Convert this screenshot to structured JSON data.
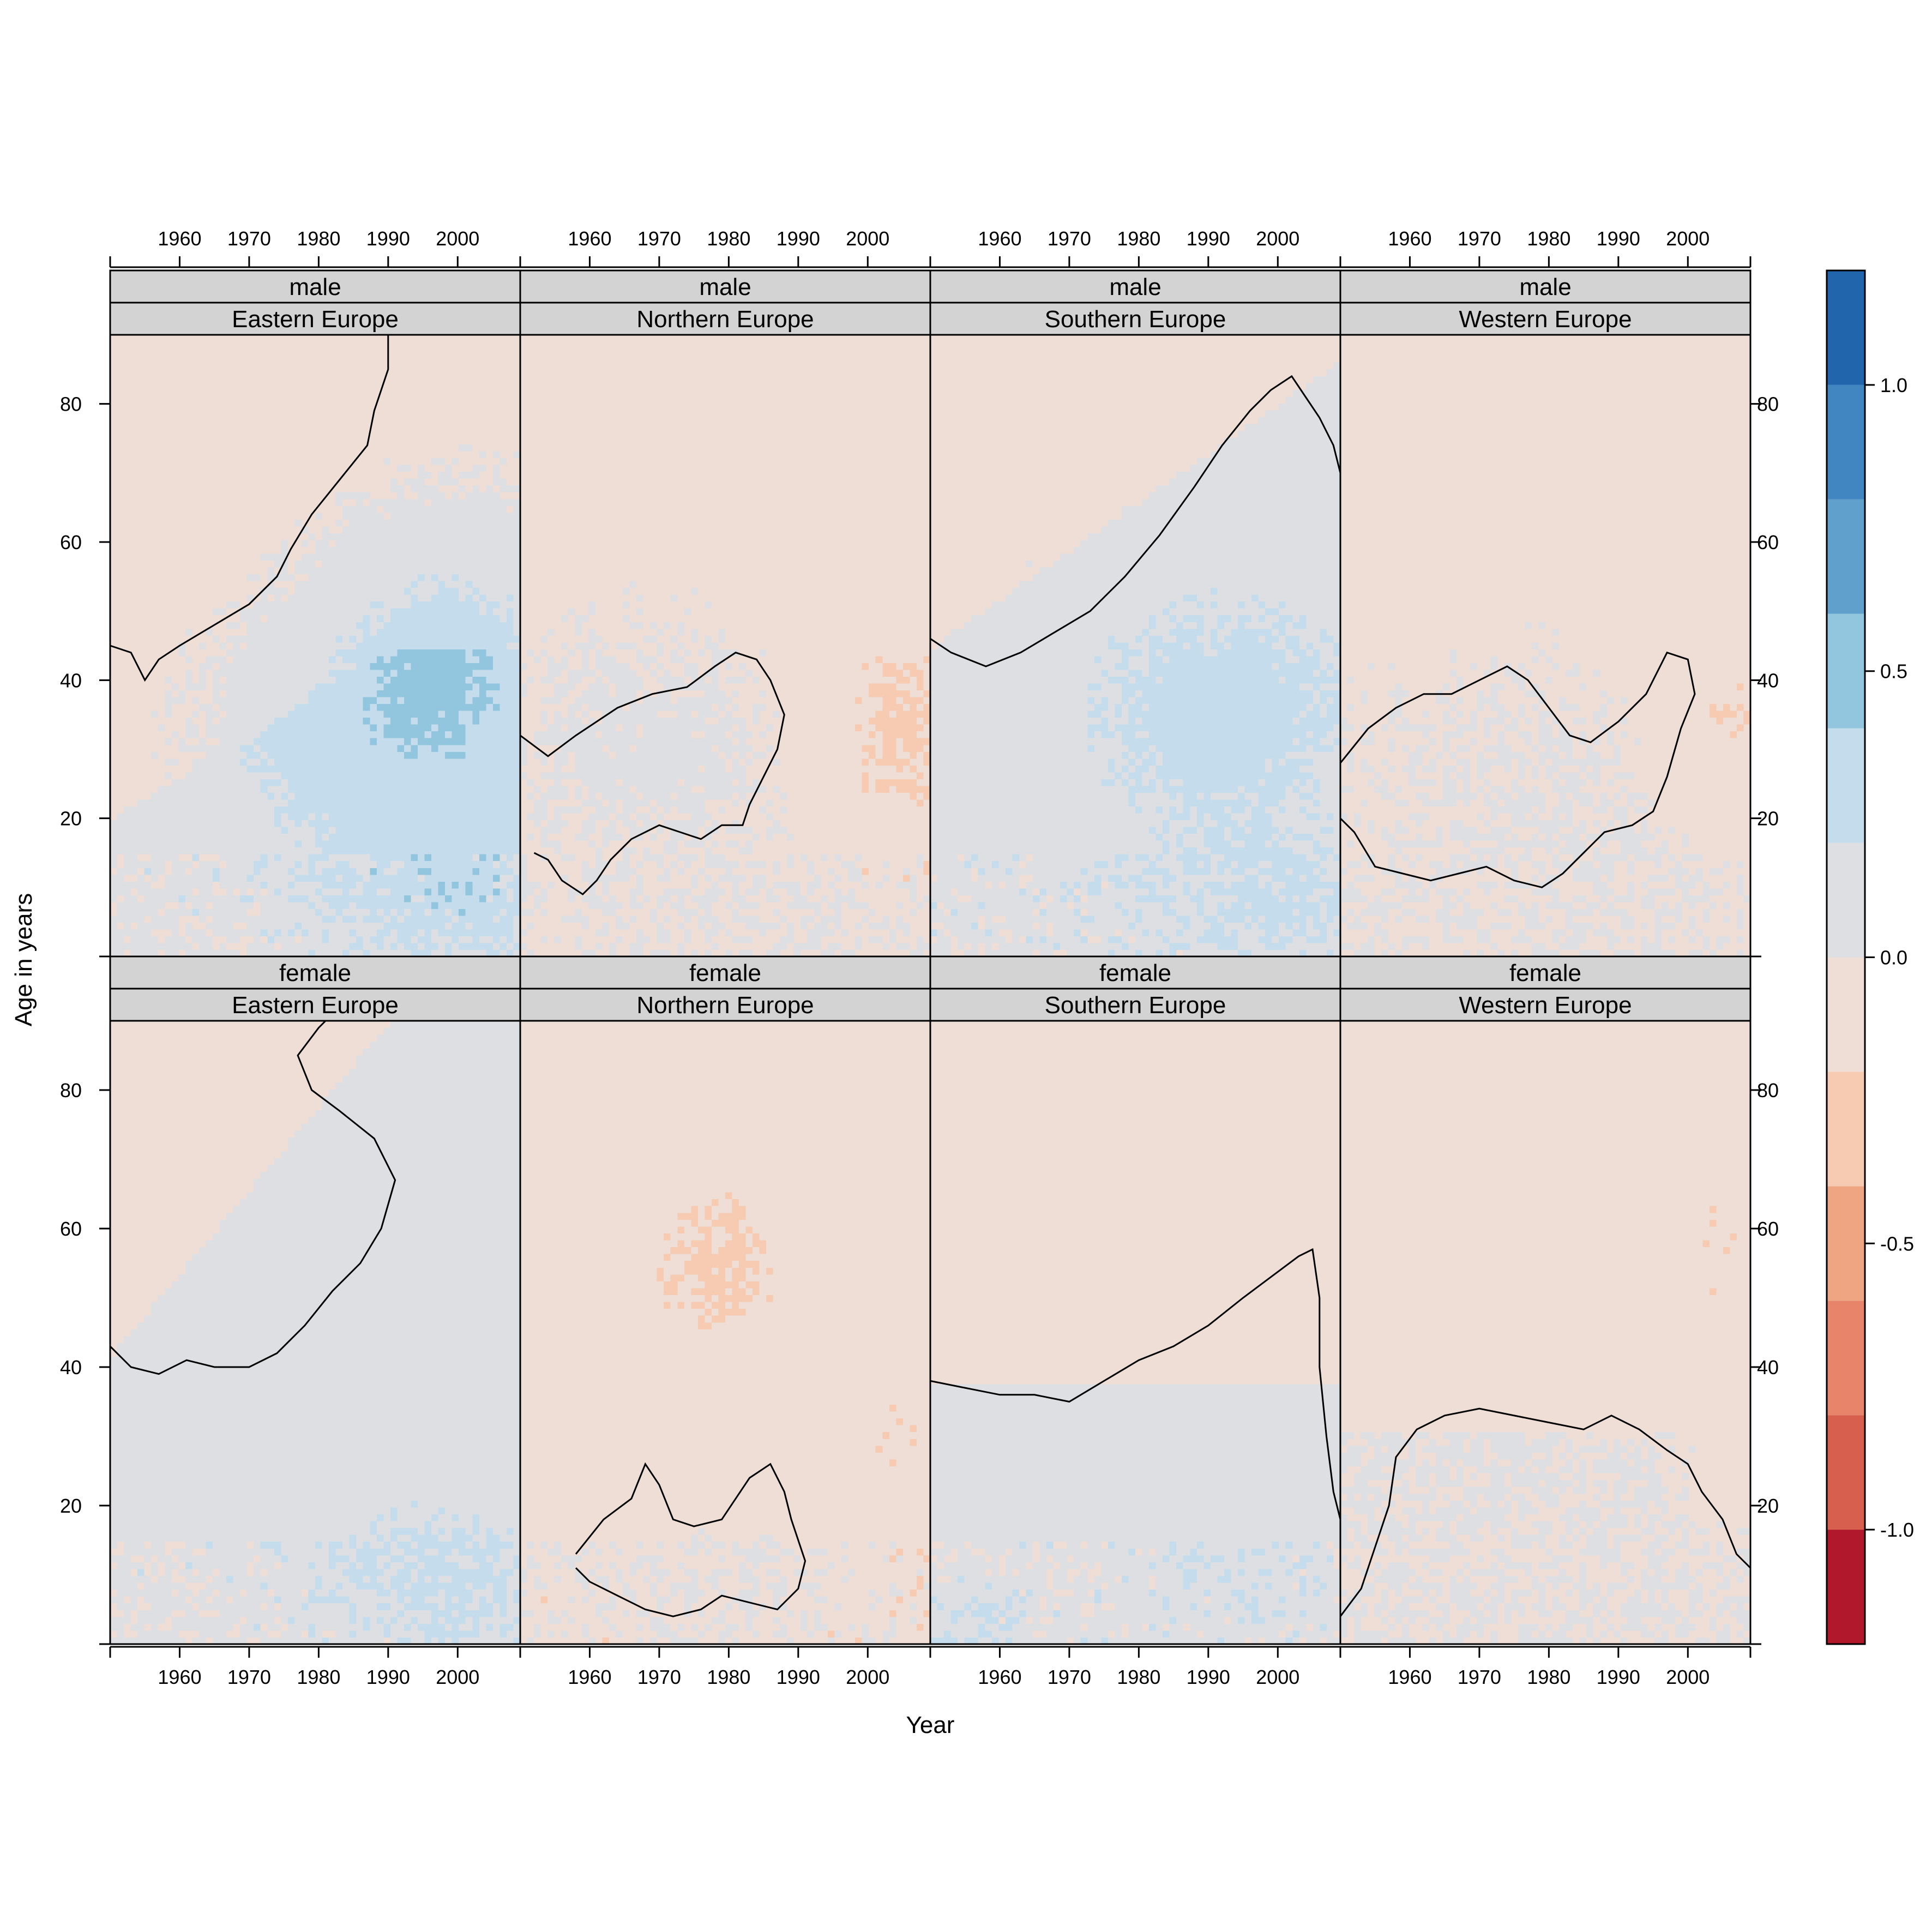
{
  "chart_data": {
    "type": "heatmap",
    "xlabel": "Year",
    "ylabel": "Age in years",
    "x_range": [
      1950,
      2009
    ],
    "y_range": [
      0,
      90
    ],
    "x_ticks": [
      1960,
      1970,
      1980,
      1990,
      2000
    ],
    "x_tick_labels": [
      "1960",
      "1970",
      "1980",
      "1990",
      "2000"
    ],
    "y_ticks": [
      20,
      40,
      60,
      80
    ],
    "y_tick_labels": [
      "20",
      "40",
      "60",
      "80"
    ],
    "colorkey": {
      "breaks": [
        -1.2,
        -1.0,
        -0.8,
        -0.6,
        -0.4,
        -0.2,
        0.0,
        0.2,
        0.4,
        0.6,
        0.8,
        1.0,
        1.2
      ],
      "colors": [
        "#B2182B",
        "#D6604D",
        "#E8846A",
        "#F0A582",
        "#F6CBB1",
        "#EEDED6",
        "#DDDFE3",
        "#C4DCEB",
        "#92C5DE",
        "#5FA1CC",
        "#4186C0",
        "#2166AC"
      ],
      "tick_values": [
        -1.0,
        -0.5,
        0.0,
        0.5,
        1.0
      ],
      "tick_labels": [
        "-1.0",
        "-0.5",
        "0.0",
        "0.5",
        "1.0"
      ],
      "placement": "right"
    },
    "contour_level": 0.0,
    "panels": [
      {
        "sex": "male",
        "region": "Eastern Europe",
        "row": 0,
        "col": 0,
        "contour": [
          [
            1950,
            45
          ],
          [
            1953,
            44
          ],
          [
            1955,
            40
          ],
          [
            1957,
            43
          ],
          [
            1960,
            45
          ],
          [
            1965,
            48
          ],
          [
            1970,
            51
          ],
          [
            1974,
            55
          ],
          [
            1976,
            59
          ],
          [
            1979,
            64
          ],
          [
            1983,
            69
          ],
          [
            1987,
            74
          ],
          [
            1988,
            79
          ],
          [
            1990,
            85
          ],
          [
            1990,
            90
          ]
        ]
      },
      {
        "sex": "male",
        "region": "Northern Europe",
        "row": 0,
        "col": 1,
        "contour": [
          [
            1950,
            32
          ],
          [
            1954,
            29
          ],
          [
            1958,
            32
          ],
          [
            1964,
            36
          ],
          [
            1969,
            38
          ],
          [
            1974,
            39
          ],
          [
            1978,
            42
          ],
          [
            1981,
            44
          ],
          [
            1984,
            43
          ],
          [
            1986,
            40
          ],
          [
            1988,
            35
          ],
          [
            1987,
            30
          ],
          [
            1985,
            26
          ],
          [
            1983,
            22
          ],
          [
            1982,
            19
          ],
          [
            1979,
            19
          ],
          [
            1976,
            17
          ],
          [
            1973,
            18
          ],
          [
            1970,
            19
          ],
          [
            1966,
            17
          ],
          [
            1963,
            14
          ],
          [
            1961,
            11
          ],
          [
            1959,
            9
          ],
          [
            1956,
            11
          ],
          [
            1954,
            14
          ],
          [
            1952,
            15
          ]
        ]
      },
      {
        "sex": "male",
        "region": "Southern Europe",
        "row": 0,
        "col": 2,
        "contour": [
          [
            1950,
            46
          ],
          [
            1953,
            44
          ],
          [
            1958,
            42
          ],
          [
            1963,
            44
          ],
          [
            1968,
            47
          ],
          [
            1973,
            50
          ],
          [
            1978,
            55
          ],
          [
            1983,
            61
          ],
          [
            1988,
            68
          ],
          [
            1992,
            74
          ],
          [
            1996,
            79
          ],
          [
            1999,
            82
          ],
          [
            2002,
            84
          ],
          [
            2004,
            81
          ],
          [
            2006,
            78
          ],
          [
            2008,
            74
          ],
          [
            2009,
            70
          ]
        ]
      },
      {
        "sex": "male",
        "region": "Western Europe",
        "row": 0,
        "col": 3,
        "contour": [
          [
            1950,
            28
          ],
          [
            1954,
            33
          ],
          [
            1958,
            36
          ],
          [
            1962,
            38
          ],
          [
            1966,
            38
          ],
          [
            1970,
            40
          ],
          [
            1974,
            42
          ],
          [
            1977,
            40
          ],
          [
            1980,
            36
          ],
          [
            1983,
            32
          ],
          [
            1986,
            31
          ],
          [
            1990,
            34
          ],
          [
            1994,
            38
          ],
          [
            1997,
            44
          ],
          [
            2000,
            43
          ],
          [
            2001,
            38
          ],
          [
            1999,
            33
          ],
          [
            1997,
            26
          ],
          [
            1995,
            21
          ],
          [
            1992,
            19
          ],
          [
            1988,
            18
          ],
          [
            1985,
            15
          ],
          [
            1982,
            12
          ],
          [
            1979,
            10
          ],
          [
            1975,
            11
          ],
          [
            1971,
            13
          ],
          [
            1967,
            12
          ],
          [
            1963,
            11
          ],
          [
            1959,
            12
          ],
          [
            1955,
            13
          ],
          [
            1952,
            18
          ],
          [
            1950,
            20
          ]
        ]
      },
      {
        "sex": "female",
        "region": "Eastern Europe",
        "row": 1,
        "col": 0,
        "contour": [
          [
            1950,
            43
          ],
          [
            1953,
            40
          ],
          [
            1957,
            39
          ],
          [
            1961,
            41
          ],
          [
            1965,
            40
          ],
          [
            1970,
            40
          ],
          [
            1974,
            42
          ],
          [
            1978,
            46
          ],
          [
            1982,
            51
          ],
          [
            1986,
            55
          ],
          [
            1989,
            60
          ],
          [
            1991,
            67
          ],
          [
            1988,
            73
          ],
          [
            1983,
            77
          ],
          [
            1979,
            80
          ],
          [
            1977,
            85
          ],
          [
            1980,
            89
          ],
          [
            1981,
            90
          ]
        ]
      },
      {
        "sex": "female",
        "region": "Northern Europe",
        "row": 1,
        "col": 1,
        "contour": [
          [
            1958,
            13
          ],
          [
            1962,
            18
          ],
          [
            1966,
            21
          ],
          [
            1968,
            26
          ],
          [
            1970,
            23
          ],
          [
            1972,
            18
          ],
          [
            1975,
            17
          ],
          [
            1979,
            18
          ],
          [
            1983,
            24
          ],
          [
            1986,
            26
          ],
          [
            1988,
            22
          ],
          [
            1989,
            18
          ],
          [
            1991,
            12
          ],
          [
            1990,
            8
          ],
          [
            1987,
            5
          ],
          [
            1983,
            6
          ],
          [
            1979,
            7
          ],
          [
            1976,
            5
          ],
          [
            1972,
            4
          ],
          [
            1968,
            5
          ],
          [
            1964,
            7
          ],
          [
            1960,
            9
          ],
          [
            1958,
            11
          ]
        ]
      },
      {
        "sex": "female",
        "region": "Southern Europe",
        "row": 1,
        "col": 2,
        "contour": [
          [
            1950,
            38
          ],
          [
            1955,
            37
          ],
          [
            1960,
            36
          ],
          [
            1965,
            36
          ],
          [
            1970,
            35
          ],
          [
            1975,
            38
          ],
          [
            1980,
            41
          ],
          [
            1985,
            43
          ],
          [
            1990,
            46
          ],
          [
            1995,
            50
          ],
          [
            1999,
            53
          ],
          [
            2003,
            56
          ],
          [
            2005,
            57
          ],
          [
            2006,
            50
          ],
          [
            2006,
            40
          ],
          [
            2007,
            30
          ],
          [
            2008,
            22
          ],
          [
            2009,
            18
          ]
        ]
      },
      {
        "sex": "female",
        "region": "Western Europe",
        "row": 1,
        "col": 3,
        "contour": [
          [
            1950,
            4
          ],
          [
            1953,
            8
          ],
          [
            1955,
            14
          ],
          [
            1957,
            20
          ],
          [
            1958,
            27
          ],
          [
            1961,
            31
          ],
          [
            1965,
            33
          ],
          [
            1970,
            34
          ],
          [
            1975,
            33
          ],
          [
            1980,
            32
          ],
          [
            1985,
            31
          ],
          [
            1989,
            33
          ],
          [
            1993,
            31
          ],
          [
            1997,
            28
          ],
          [
            2000,
            26
          ],
          [
            2002,
            22
          ],
          [
            2005,
            18
          ],
          [
            2007,
            13
          ],
          [
            2009,
            11
          ]
        ]
      }
    ],
    "description_of_regions": {
      "male": {
        "Eastern Europe": "strong positive (blue) band ages 20-55 after 1980, peak ~0.5 around ages 35-50 in 1990s-2000s",
        "Northern Europe": "mostly slightly negative, orange patches ages 20-45 after 1990",
        "Southern Europe": "mild positive band ages 0-45 rising with year",
        "Western Europe": "mostly near zero/slightly negative"
      },
      "female": {
        "Eastern Europe": "mild positive lower ages, blue at young ages after 1985",
        "Northern Europe": "slightly negative with orange patches ages 45-65 around 1975-1985",
        "Southern Europe": "slightly negative above 40, slightly positive below",
        "Western Europe": "slightly negative above 30"
      }
    }
  }
}
